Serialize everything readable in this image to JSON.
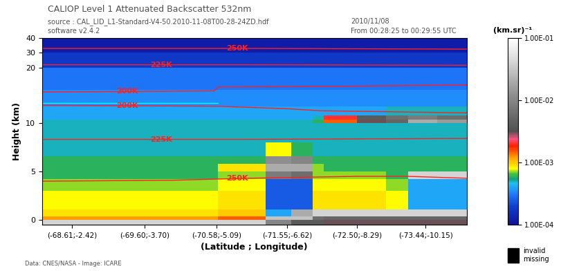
{
  "chart_data": {
    "type": "heatmap",
    "title": "CALIOP Level 1 Attenuated Backscatter 532nm",
    "subtitle": [
      "source : CAL_LID_L1-Standard-V4-50.2010-11-08T00-28-24ZD.hdf",
      "software v2.4.2"
    ],
    "date": [
      "2010/11/08",
      "From 00:28:25 to 00:29:55 UTC"
    ],
    "x_label": "(Latitude ; Longitude)",
    "y_label": "Height (km)",
    "footer": "Data: CNES/NASA - Image: ICARE",
    "invalid_missing": [
      "invalid",
      "missing"
    ],
    "xlim": [
      -68.2,
      -74.0
    ],
    "xticks": [
      {
        "value": -68.61,
        "label": "(-68.61;-2.42)"
      },
      {
        "value": -69.6,
        "label": "(-69.60;-3.70)"
      },
      {
        "value": -70.58,
        "label": "(-70.58;-5.09)"
      },
      {
        "value": -71.55,
        "label": "(-71.55;-6.62)"
      },
      {
        "value": -72.5,
        "label": "(-72.50;-8.29)"
      },
      {
        "value": -73.44,
        "label": "(-73.44;-10.15)"
      }
    ],
    "ylim": [
      -0.5,
      40
    ],
    "yticks": [
      0,
      5,
      10,
      20,
      30,
      40
    ],
    "x_edges": [
      -68.2,
      -68.8,
      -69.4,
      -70.0,
      -70.6,
      -71.25,
      -71.6,
      -71.9,
      -72.05,
      -72.5,
      -72.9,
      -73.2,
      -73.6,
      -74.0
    ],
    "height_edges": [
      -0.5,
      0,
      0.4,
      1.1,
      2,
      3,
      4.2,
      5,
      5.8,
      6.6,
      8,
      10,
      10.6,
      11.4,
      13,
      16,
      20,
      30,
      40
    ],
    "cells": [
      [
        0.04,
        0.04,
        0.04,
        0.04,
        0.04,
        0.01,
        0.004,
        0.004,
        0.003,
        0.003,
        0.003,
        0.003,
        0.003
      ],
      [
        0.0012,
        0.0012,
        0.0012,
        0.0012,
        0.0015,
        0.03,
        0.03,
        0.006,
        0.005,
        0.005,
        0.005,
        0.005,
        0.005
      ],
      [
        0.0009,
        0.0009,
        0.0009,
        0.0009,
        0.001,
        0.0004,
        0.02,
        0.04,
        0.04,
        0.04,
        0.04,
        0.04,
        0.04
      ],
      [
        0.0008,
        0.0008,
        0.0008,
        0.0008,
        0.0009,
        0.00025,
        0.00025,
        0.0009,
        0.0009,
        0.0009,
        0.0008,
        0.0004,
        0.0004
      ],
      [
        0.0008,
        0.0008,
        0.0008,
        0.0008,
        0.0009,
        0.00025,
        0.00025,
        0.0009,
        0.0009,
        0.0009,
        0.0008,
        0.0004,
        0.0004
      ],
      [
        0.0007,
        0.0007,
        0.0007,
        0.0007,
        0.0008,
        0.00025,
        0.00025,
        0.0008,
        0.0008,
        0.0008,
        0.0007,
        0.0004,
        0.0004
      ],
      [
        0.0006,
        0.0006,
        0.0006,
        0.0006,
        0.0007,
        0.008,
        0.006,
        0.0007,
        0.0007,
        0.0007,
        0.0006,
        0.04,
        0.04
      ],
      [
        0.0006,
        0.0006,
        0.0006,
        0.0006,
        0.0009,
        0.02,
        0.02,
        0.0007,
        0.0006,
        0.0006,
        0.0006,
        0.0006,
        0.0006
      ],
      [
        0.0006,
        0.0006,
        0.0006,
        0.0006,
        0.0006,
        0.012,
        0.01,
        0.0006,
        0.0006,
        0.0006,
        0.0006,
        0.0006,
        0.0006
      ],
      [
        0.0005,
        0.0005,
        0.0005,
        0.0005,
        0.0005,
        0.0008,
        0.0006,
        0.0005,
        0.0005,
        0.0005,
        0.0005,
        0.0005,
        0.0005
      ],
      [
        0.0005,
        0.0005,
        0.0005,
        0.0005,
        0.0005,
        0.0005,
        0.0005,
        0.0005,
        0.0005,
        0.0005,
        0.0005,
        0.0005,
        0.0005
      ],
      [
        0.0005,
        0.0005,
        0.0005,
        0.0005,
        0.0005,
        0.0005,
        0.0005,
        0.0006,
        0.0015,
        0.003,
        0.005,
        0.02,
        0.015
      ],
      [
        0.0004,
        0.0004,
        0.0004,
        0.0004,
        0.0004,
        0.0004,
        0.0004,
        0.0005,
        0.002,
        0.004,
        0.006,
        0.008,
        0.006
      ],
      [
        0.0004,
        0.0004,
        0.0004,
        0.0004,
        0.0004,
        0.0004,
        0.0004,
        0.0004,
        0.0004,
        0.0004,
        0.0005,
        0.0005,
        0.0005
      ],
      [
        0.00035,
        0.00035,
        0.00035,
        0.00035,
        0.00035,
        0.00035,
        0.00035,
        0.00035,
        0.00035,
        0.00035,
        0.00035,
        0.00035,
        0.00035
      ],
      [
        0.0003,
        0.0003,
        0.0003,
        0.0003,
        0.0003,
        0.0003,
        0.0003,
        0.0003,
        0.0003,
        0.0003,
        0.0003,
        0.0003,
        0.0003
      ],
      [
        0.00018,
        0.00018,
        0.00018,
        0.00018,
        0.00018,
        0.00018,
        0.00018,
        0.00018,
        0.00018,
        0.00018,
        0.00018,
        0.00018,
        0.00018
      ],
      [
        0.00012,
        0.00012,
        0.00012,
        0.00012,
        0.00012,
        0.00012,
        0.00012,
        0.00012,
        0.00012,
        0.00012,
        0.00012,
        0.00012,
        0.00012
      ]
    ],
    "colorbar": {
      "label": "(km.sr)⁻¹",
      "range": [
        0.0001,
        0.1
      ],
      "log": true,
      "ticks": [
        {
          "value": 0.1,
          "label": "1.00E-01"
        },
        {
          "value": 0.01,
          "label": "1.00E-02"
        },
        {
          "value": 0.001,
          "label": "1.00E-03"
        },
        {
          "value": 0.0001,
          "label": "1.00E-04"
        }
      ]
    },
    "series": [
      {
        "name": "250K",
        "color": "#ff2020",
        "x": [
          -68.2,
          -71.0,
          -74.0
        ],
        "values": [
          33,
          33,
          32.5
        ]
      },
      {
        "name": "225K",
        "color": "#ff2020",
        "x": [
          -68.2,
          -71.0,
          -74.0
        ],
        "values": [
          22.0,
          22.0,
          21.7
        ]
      },
      {
        "name": "200K",
        "color": "#ff2020",
        "x": [
          -68.2,
          -69.5,
          -70.55,
          -70.6,
          -72.0,
          -74.0
        ],
        "values": [
          15.6,
          15.7,
          15.8,
          16.5,
          16.6,
          16.9
        ]
      },
      {
        "name": "200K",
        "color": "#ff2020",
        "x": [
          -68.2,
          -70.6,
          -71.5,
          -72.0,
          -74.0
        ],
        "values": [
          13.2,
          13.0,
          12.6,
          12.2,
          11.8
        ]
      },
      {
        "name": "225K",
        "color": "#ff2020",
        "x": [
          -68.2,
          -71.0,
          -74.0
        ],
        "values": [
          8.3,
          8.3,
          8.4
        ]
      },
      {
        "name": "250K",
        "color": "#ff2020",
        "x": [
          -68.2,
          -70.0,
          -71.0,
          -72.5,
          -73.2,
          -74.0
        ],
        "values": [
          4.0,
          4.1,
          4.3,
          4.5,
          4.5,
          4.3
        ]
      },
      {
        "color": "#00ffff",
        "x": [
          -68.2,
          -70.6
        ],
        "values": [
          13.6,
          13.6
        ]
      }
    ]
  }
}
